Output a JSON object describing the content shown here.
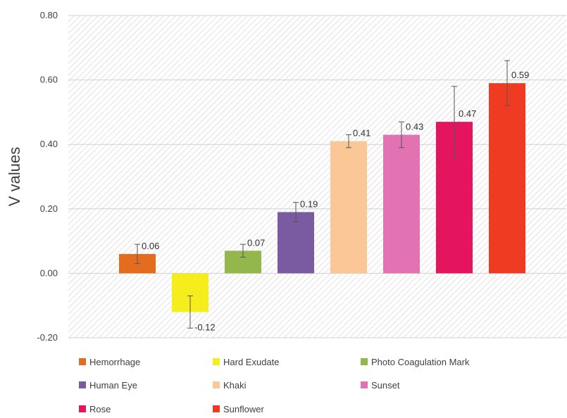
{
  "chart_data": {
    "type": "bar",
    "ylabel": "V values",
    "xlabel": "",
    "ylim": [
      -0.2,
      0.8
    ],
    "yticks": [
      "0.80",
      "0.60",
      "0.40",
      "0.20",
      "0.00",
      "-0.20"
    ],
    "categories": [
      "Hemorrhage",
      "Hard Exudate",
      "Photo Coagulation Mark",
      "Human Eye",
      "Khaki",
      "Sunset",
      "Rose",
      "Sunflower"
    ],
    "values": [
      0.06,
      -0.12,
      0.07,
      0.19,
      0.41,
      0.43,
      0.47,
      0.59
    ],
    "data_labels": [
      "0.06",
      "-0.12",
      "0.07",
      "0.19",
      "0.41",
      "0.43",
      "0.47",
      "0.59"
    ],
    "error_low": [
      0.03,
      0.05,
      0.02,
      0.03,
      0.02,
      0.04,
      0.11,
      0.07
    ],
    "error_high": [
      0.03,
      0.05,
      0.02,
      0.03,
      0.02,
      0.04,
      0.11,
      0.07
    ],
    "colors": [
      "#e46c1f",
      "#f5ee1c",
      "#93b64d",
      "#7a5aa0",
      "#fbc796",
      "#e173b3",
      "#e5145e",
      "#ee3b22"
    ],
    "grid": true,
    "plot_background": "hatched",
    "legend_position": "bottom"
  }
}
